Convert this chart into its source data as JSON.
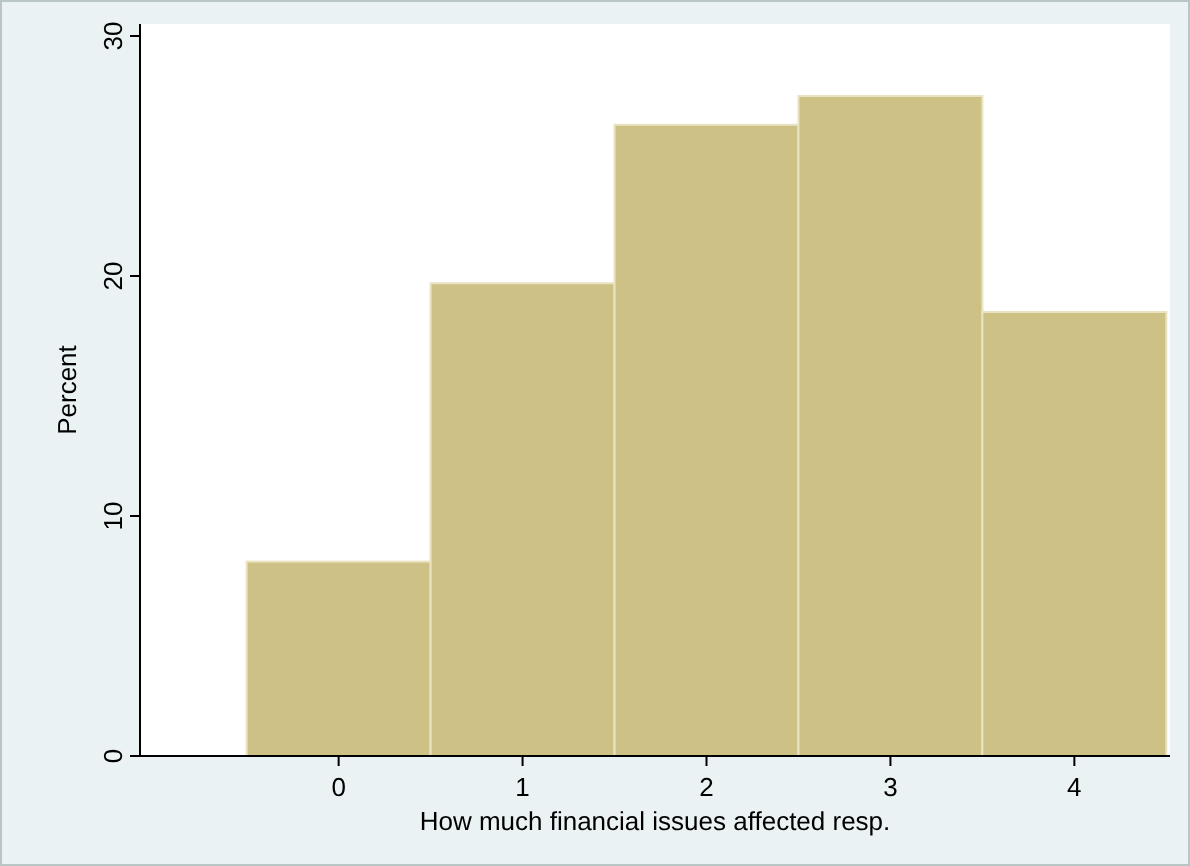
{
  "chart_data": {
    "type": "histogram",
    "xlabel": "How much financial issues affected resp.",
    "ylabel": "Percent",
    "bins": [
      -0.5,
      0.5,
      1.5,
      2.5,
      3.5,
      4.5
    ],
    "values": [
      8.1,
      19.7,
      26.3,
      27.5,
      18.5
    ],
    "color": "#cdc185",
    "xlim": [
      -1.08,
      4.52
    ],
    "xticks": [
      0,
      1,
      2,
      3,
      4
    ],
    "ylim": [
      0,
      30.5
    ],
    "yticks": [
      0,
      10,
      20,
      30
    ],
    "grid": false
  }
}
